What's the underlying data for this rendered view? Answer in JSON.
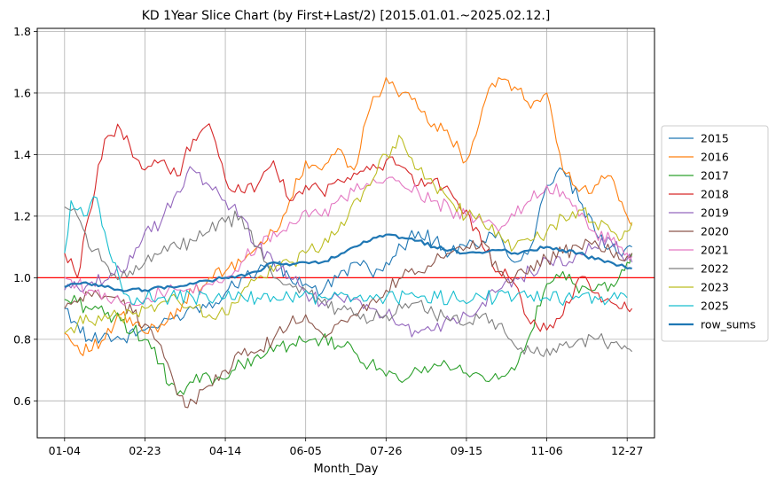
{
  "chart_data": {
    "type": "line",
    "title": "KD 1Year Slice Chart (by First+Last/2) [2015.01.01.~2025.02.12.]",
    "xlabel": "Month_Day",
    "ylabel": "",
    "x_ticks": [
      "01-04",
      "02-23",
      "04-14",
      "06-05",
      "07-26",
      "09-15",
      "11-06",
      "12-27"
    ],
    "x_tick_index": [
      0,
      50,
      100,
      150,
      200,
      250,
      300,
      350
    ],
    "x_range": [
      -17,
      367
    ],
    "ylim": [
      0.48,
      1.81
    ],
    "y_ticks": [
      0.6,
      0.8,
      1.0,
      1.2,
      1.4,
      1.6,
      1.8
    ],
    "grid": true,
    "legend_position": "outside-right",
    "reference_line": {
      "y": 1.0,
      "color": "#ff0000"
    },
    "series": [
      {
        "name": "2015",
        "color": "#1f77b4",
        "x": [
          0,
          8,
          15,
          25,
          35,
          50,
          60,
          70,
          80,
          90,
          100,
          110,
          120,
          130,
          140,
          150,
          160,
          170,
          180,
          190,
          200,
          210,
          220,
          230,
          240,
          250,
          260,
          270,
          280,
          290,
          300,
          310,
          320,
          330,
          340,
          345,
          350,
          353
        ],
        "values": [
          0.9,
          0.85,
          0.8,
          0.82,
          0.8,
          0.83,
          0.85,
          0.88,
          0.9,
          0.92,
          0.95,
          1.0,
          1.02,
          1.05,
          1.0,
          0.98,
          0.95,
          1.0,
          1.05,
          1.02,
          1.05,
          1.1,
          1.15,
          1.12,
          1.08,
          1.1,
          1.12,
          1.15,
          1.05,
          1.1,
          1.3,
          1.35,
          1.25,
          1.15,
          1.1,
          1.08,
          1.1,
          1.1
        ]
      },
      {
        "name": "2016",
        "color": "#ff7f0e",
        "x": [
          0,
          8,
          15,
          25,
          35,
          50,
          60,
          70,
          80,
          90,
          100,
          110,
          120,
          130,
          140,
          150,
          160,
          170,
          180,
          190,
          200,
          210,
          220,
          230,
          240,
          250,
          260,
          270,
          280,
          290,
          300,
          310,
          320,
          330,
          340,
          345,
          350,
          353
        ],
        "values": [
          0.82,
          0.78,
          0.76,
          0.8,
          0.88,
          0.82,
          0.85,
          0.9,
          0.95,
          1.0,
          1.02,
          1.05,
          1.1,
          1.15,
          1.25,
          1.38,
          1.35,
          1.42,
          1.35,
          1.55,
          1.65,
          1.6,
          1.55,
          1.5,
          1.45,
          1.38,
          1.55,
          1.65,
          1.62,
          1.55,
          1.6,
          1.35,
          1.28,
          1.3,
          1.33,
          1.25,
          1.2,
          1.17
        ]
      },
      {
        "name": "2017",
        "color": "#2ca02c",
        "x": [
          0,
          8,
          15,
          25,
          35,
          50,
          60,
          65,
          70,
          80,
          90,
          100,
          110,
          120,
          130,
          140,
          150,
          160,
          170,
          180,
          190,
          200,
          210,
          220,
          230,
          240,
          250,
          260,
          270,
          280,
          290,
          300,
          310,
          320,
          330,
          340,
          345,
          350,
          353
        ],
        "values": [
          0.93,
          0.92,
          0.9,
          0.88,
          0.86,
          0.8,
          0.72,
          0.65,
          0.62,
          0.66,
          0.68,
          0.67,
          0.72,
          0.75,
          0.76,
          0.78,
          0.79,
          0.8,
          0.78,
          0.76,
          0.72,
          0.68,
          0.66,
          0.7,
          0.72,
          0.7,
          0.69,
          0.68,
          0.67,
          0.7,
          0.82,
          0.98,
          1.02,
          0.95,
          0.96,
          0.98,
          1.0,
          1.05,
          1.08
        ]
      },
      {
        "name": "2018",
        "color": "#d62728",
        "x": [
          0,
          8,
          15,
          25,
          35,
          50,
          60,
          70,
          80,
          90,
          100,
          110,
          120,
          130,
          140,
          150,
          160,
          170,
          180,
          190,
          200,
          210,
          220,
          230,
          240,
          250,
          260,
          270,
          280,
          290,
          300,
          310,
          320,
          330,
          340,
          345,
          350,
          353
        ],
        "values": [
          1.08,
          1.0,
          1.2,
          1.45,
          1.48,
          1.35,
          1.38,
          1.33,
          1.45,
          1.5,
          1.32,
          1.28,
          1.3,
          1.38,
          1.25,
          1.3,
          1.28,
          1.32,
          1.34,
          1.35,
          1.38,
          1.36,
          1.3,
          1.32,
          1.28,
          1.22,
          1.1,
          1.02,
          0.98,
          0.85,
          0.83,
          0.88,
          1.0,
          0.95,
          0.92,
          0.9,
          0.9,
          0.9
        ]
      },
      {
        "name": "2019",
        "color": "#9467bd",
        "x": [
          0,
          8,
          15,
          25,
          35,
          50,
          60,
          70,
          80,
          90,
          100,
          110,
          120,
          130,
          140,
          150,
          160,
          170,
          180,
          190,
          200,
          210,
          220,
          230,
          240,
          250,
          260,
          270,
          280,
          290,
          300,
          310,
          320,
          330,
          340,
          345,
          350,
          353
        ],
        "values": [
          0.96,
          0.97,
          0.98,
          0.99,
          1.02,
          1.15,
          1.18,
          1.28,
          1.35,
          1.3,
          1.25,
          1.2,
          1.1,
          1.05,
          1.0,
          0.95,
          0.92,
          0.94,
          0.93,
          0.9,
          0.88,
          0.85,
          0.82,
          0.83,
          0.86,
          0.88,
          0.92,
          0.96,
          1.0,
          1.02,
          1.06,
          1.04,
          1.08,
          1.1,
          1.12,
          1.08,
          1.06,
          1.05
        ]
      },
      {
        "name": "2020",
        "color": "#8c564b",
        "x": [
          0,
          8,
          15,
          25,
          35,
          50,
          60,
          70,
          75,
          80,
          90,
          100,
          110,
          120,
          130,
          140,
          150,
          160,
          170,
          180,
          190,
          200,
          210,
          220,
          230,
          240,
          250,
          260,
          270,
          280,
          290,
          300,
          310,
          320,
          330,
          340,
          345,
          350,
          353
        ],
        "values": [
          0.9,
          0.92,
          0.95,
          0.94,
          0.92,
          0.85,
          0.78,
          0.62,
          0.58,
          0.6,
          0.65,
          0.7,
          0.75,
          0.76,
          0.8,
          0.85,
          0.88,
          0.82,
          0.85,
          0.88,
          0.92,
          0.96,
          1.0,
          1.02,
          1.05,
          1.08,
          1.1,
          1.12,
          1.02,
          1.0,
          1.04,
          1.06,
          1.08,
          1.1,
          1.12,
          1.08,
          1.06,
          1.07,
          1.08
        ]
      },
      {
        "name": "2021",
        "color": "#e377c2",
        "x": [
          0,
          8,
          15,
          25,
          35,
          50,
          60,
          70,
          80,
          90,
          100,
          110,
          120,
          130,
          140,
          150,
          160,
          170,
          180,
          190,
          200,
          210,
          220,
          230,
          240,
          250,
          260,
          270,
          280,
          290,
          300,
          310,
          320,
          330,
          340,
          345,
          350,
          353
        ],
        "values": [
          1.0,
          0.98,
          0.96,
          0.95,
          0.92,
          0.93,
          0.95,
          0.96,
          0.95,
          0.98,
          1.0,
          1.05,
          1.1,
          1.15,
          1.18,
          1.22,
          1.2,
          1.25,
          1.28,
          1.3,
          1.32,
          1.3,
          1.28,
          1.25,
          1.22,
          1.2,
          1.18,
          1.15,
          1.2,
          1.25,
          1.3,
          1.28,
          1.2,
          1.15,
          1.12,
          1.1,
          1.08,
          1.07
        ]
      },
      {
        "name": "2022",
        "color": "#7f7f7f",
        "x": [
          0,
          8,
          15,
          25,
          35,
          50,
          60,
          70,
          80,
          90,
          100,
          110,
          120,
          130,
          140,
          150,
          160,
          170,
          180,
          190,
          200,
          210,
          220,
          230,
          240,
          250,
          260,
          270,
          280,
          290,
          300,
          310,
          320,
          330,
          340,
          345,
          350,
          353
        ],
        "values": [
          1.23,
          1.2,
          1.1,
          1.05,
          1.0,
          1.05,
          1.08,
          1.1,
          1.12,
          1.15,
          1.18,
          1.2,
          1.1,
          1.0,
          0.98,
          0.96,
          0.92,
          0.9,
          0.88,
          0.86,
          0.88,
          0.9,
          0.92,
          0.88,
          0.86,
          0.85,
          0.88,
          0.85,
          0.78,
          0.76,
          0.77,
          0.78,
          0.8,
          0.8,
          0.79,
          0.78,
          0.77,
          0.76
        ]
      },
      {
        "name": "2023",
        "color": "#bcbd22",
        "x": [
          0,
          8,
          15,
          25,
          35,
          50,
          60,
          70,
          80,
          90,
          100,
          110,
          120,
          130,
          140,
          150,
          160,
          170,
          180,
          190,
          200,
          210,
          220,
          230,
          240,
          250,
          260,
          270,
          280,
          290,
          300,
          310,
          320,
          330,
          340,
          345,
          350,
          353
        ],
        "values": [
          0.82,
          0.85,
          0.86,
          0.88,
          0.87,
          0.9,
          0.92,
          0.93,
          0.9,
          0.88,
          0.88,
          0.95,
          1.0,
          1.02,
          1.05,
          1.08,
          1.1,
          1.15,
          1.25,
          1.3,
          1.4,
          1.45,
          1.35,
          1.3,
          1.25,
          1.2,
          1.18,
          1.15,
          1.1,
          1.12,
          1.15,
          1.2,
          1.22,
          1.18,
          1.15,
          1.12,
          1.15,
          1.18
        ]
      },
      {
        "name": "2025",
        "color": "#17becf",
        "x": [
          0,
          4,
          8,
          12,
          16,
          20,
          25,
          28,
          30,
          35,
          40,
          45,
          60,
          80,
          100,
          120,
          140,
          160,
          180,
          200,
          220,
          240,
          260,
          280,
          300,
          320,
          340,
          350
        ],
        "values": [
          1.08,
          1.25,
          1.22,
          1.2,
          1.24,
          1.26,
          1.15,
          1.08,
          1.05,
          0.98,
          0.94,
          0.935,
          0.935,
          0.935,
          0.935,
          0.935,
          0.935,
          0.935,
          0.935,
          0.935,
          0.935,
          0.935,
          0.935,
          0.935,
          0.935,
          0.935,
          0.935,
          0.935
        ]
      },
      {
        "name": "row_sums",
        "color": "#1f77b4",
        "thick": true,
        "x": [
          0,
          8,
          15,
          25,
          35,
          50,
          60,
          70,
          80,
          90,
          100,
          110,
          120,
          130,
          140,
          150,
          160,
          170,
          180,
          190,
          200,
          210,
          220,
          230,
          240,
          250,
          260,
          270,
          280,
          290,
          300,
          310,
          320,
          330,
          340,
          345,
          350,
          353
        ],
        "values": [
          0.97,
          0.98,
          0.98,
          0.97,
          0.96,
          0.96,
          0.97,
          0.97,
          0.98,
          0.99,
          1.0,
          1.01,
          1.02,
          1.05,
          1.04,
          1.05,
          1.05,
          1.07,
          1.1,
          1.12,
          1.14,
          1.13,
          1.12,
          1.1,
          1.09,
          1.08,
          1.08,
          1.09,
          1.08,
          1.09,
          1.1,
          1.09,
          1.08,
          1.06,
          1.05,
          1.04,
          1.03,
          1.03
        ]
      }
    ]
  }
}
